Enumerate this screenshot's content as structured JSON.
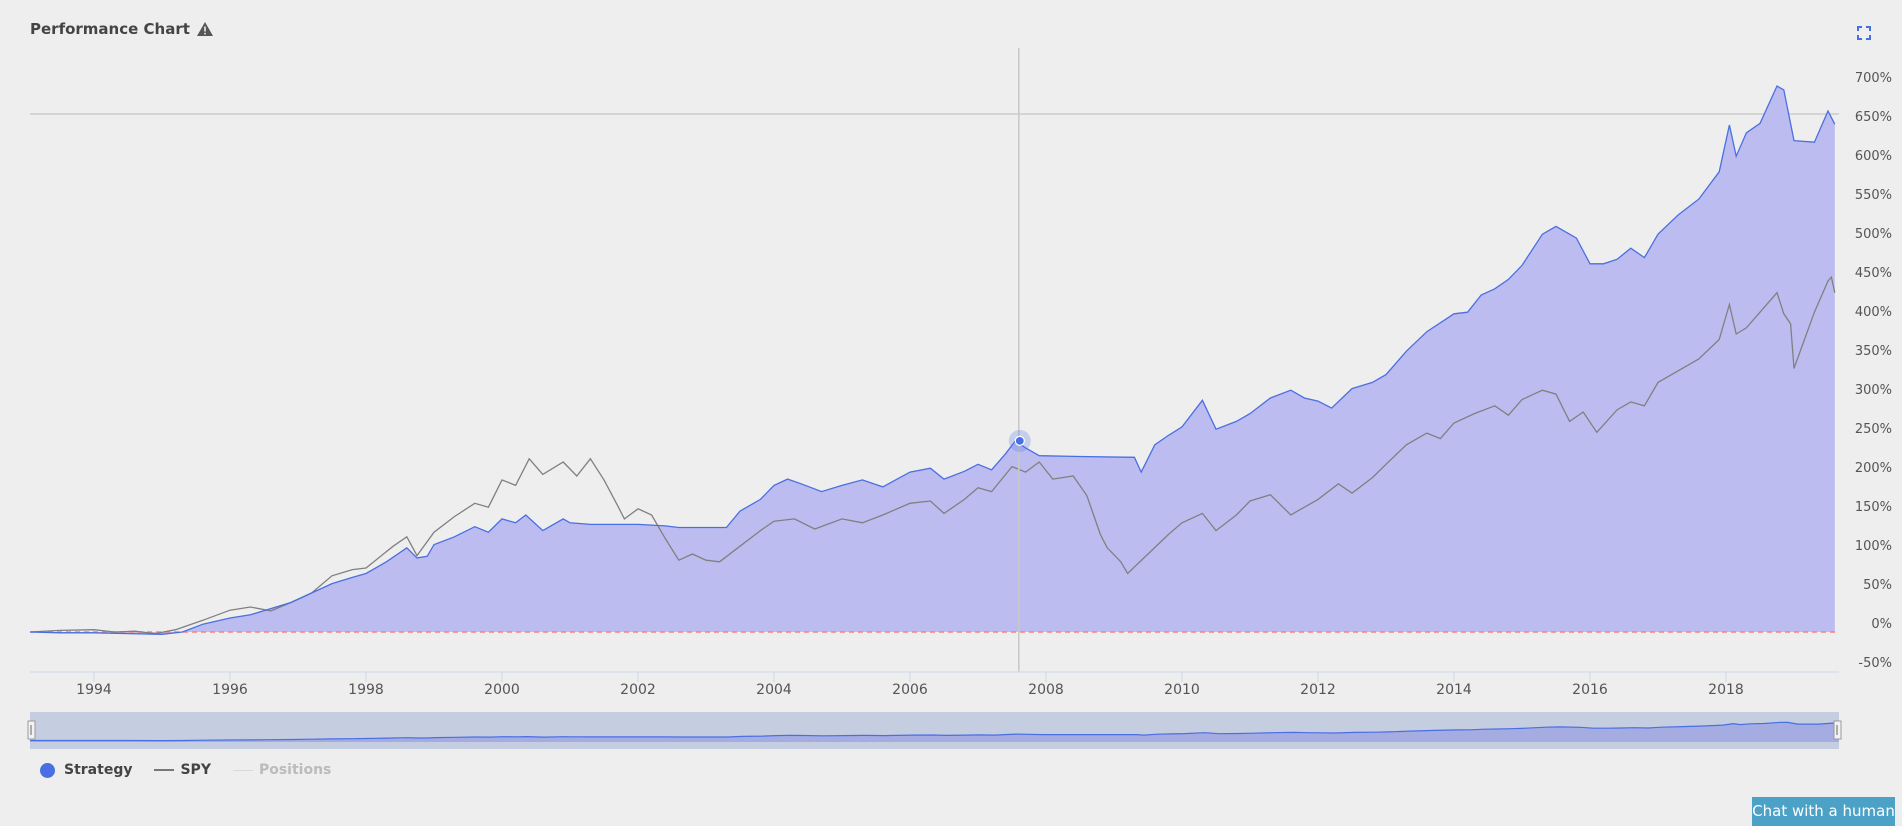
{
  "header": {
    "title": "Performance Chart",
    "warning_icon": "warning-triangle-icon",
    "fullscreen_icon": "fullscreen-icon"
  },
  "colors": {
    "strategy": "#4a6fe3",
    "strategy_fill": "#bcbcf0",
    "spy": "#808080",
    "zero_line": "#ff7f7f",
    "positions": "#cccccc",
    "chat_bg": "#4ba2c6"
  },
  "legend": [
    {
      "label": "Strategy",
      "color": "#4a6fe3",
      "symbol": "dot"
    },
    {
      "label": "SPY",
      "color": "#777777",
      "symbol": "line"
    },
    {
      "label": "Positions",
      "color": "#cccccc",
      "symbol": "line",
      "muted": true
    }
  ],
  "chat_button": {
    "label": "Chat with a human"
  },
  "chart_data": {
    "type": "area",
    "title": "Performance Chart",
    "xlabel": "",
    "ylabel": "",
    "x_ticks": [
      "1994",
      "1996",
      "1998",
      "2000",
      "2002",
      "2004",
      "2006",
      "2008",
      "2010",
      "2012",
      "2014",
      "2016",
      "2018"
    ],
    "y_ticks": [
      "700%",
      "650%",
      "600%",
      "550%",
      "500%",
      "450%",
      "400%",
      "350%",
      "300%",
      "250%",
      "200%",
      "150%",
      "100%",
      "50%",
      "0%",
      "-50%"
    ],
    "ylim": [
      -50,
      710
    ],
    "xlim": [
      1993.06,
      2019.6
    ],
    "grid": false,
    "legend_position": "bottom-left",
    "crosshair": {
      "x": 2007.6,
      "strategy_value": 245,
      "marker_y_value": 245
    },
    "series": [
      {
        "name": "Strategy",
        "type": "area",
        "points": [
          [
            1993.06,
            0
          ],
          [
            1993.5,
            -1
          ],
          [
            1994.0,
            -1
          ],
          [
            1994.5,
            -2
          ],
          [
            1995.0,
            -3
          ],
          [
            1995.3,
            0
          ],
          [
            1995.6,
            10
          ],
          [
            1996.0,
            18
          ],
          [
            1996.3,
            22
          ],
          [
            1996.6,
            30
          ],
          [
            1996.9,
            38
          ],
          [
            1997.2,
            50
          ],
          [
            1997.5,
            62
          ],
          [
            1997.8,
            70
          ],
          [
            1998.0,
            75
          ],
          [
            1998.3,
            90
          ],
          [
            1998.6,
            108
          ],
          [
            1998.75,
            95
          ],
          [
            1998.9,
            97
          ],
          [
            1999.0,
            112
          ],
          [
            1999.3,
            122
          ],
          [
            1999.6,
            135
          ],
          [
            1999.8,
            128
          ],
          [
            2000.0,
            145
          ],
          [
            2000.2,
            140
          ],
          [
            2000.35,
            150
          ],
          [
            2000.6,
            130
          ],
          [
            2000.9,
            145
          ],
          [
            2001.0,
            140
          ],
          [
            2001.3,
            138
          ],
          [
            2002.0,
            138
          ],
          [
            2002.4,
            136
          ],
          [
            2002.6,
            134
          ],
          [
            2003.3,
            134
          ],
          [
            2003.5,
            155
          ],
          [
            2003.8,
            170
          ],
          [
            2004.0,
            188
          ],
          [
            2004.2,
            196
          ],
          [
            2004.4,
            190
          ],
          [
            2004.7,
            180
          ],
          [
            2005.0,
            188
          ],
          [
            2005.3,
            195
          ],
          [
            2005.6,
            186
          ],
          [
            2006.0,
            205
          ],
          [
            2006.3,
            210
          ],
          [
            2006.5,
            196
          ],
          [
            2006.8,
            206
          ],
          [
            2007.0,
            215
          ],
          [
            2007.2,
            208
          ],
          [
            2007.4,
            228
          ],
          [
            2007.55,
            245
          ],
          [
            2007.7,
            236
          ],
          [
            2007.9,
            226
          ],
          [
            2008.5,
            225
          ],
          [
            2009.3,
            224
          ],
          [
            2009.4,
            205
          ],
          [
            2009.6,
            240
          ],
          [
            2009.8,
            252
          ],
          [
            2010.0,
            263
          ],
          [
            2010.3,
            297
          ],
          [
            2010.5,
            260
          ],
          [
            2010.8,
            270
          ],
          [
            2011.0,
            280
          ],
          [
            2011.3,
            300
          ],
          [
            2011.6,
            310
          ],
          [
            2011.8,
            300
          ],
          [
            2012.0,
            296
          ],
          [
            2012.2,
            287
          ],
          [
            2012.5,
            312
          ],
          [
            2012.8,
            320
          ],
          [
            2013.0,
            330
          ],
          [
            2013.3,
            360
          ],
          [
            2013.6,
            385
          ],
          [
            2014.0,
            408
          ],
          [
            2014.2,
            410
          ],
          [
            2014.4,
            432
          ],
          [
            2014.6,
            440
          ],
          [
            2014.8,
            452
          ],
          [
            2015.0,
            470
          ],
          [
            2015.3,
            510
          ],
          [
            2015.5,
            520
          ],
          [
            2015.8,
            505
          ],
          [
            2016.0,
            472
          ],
          [
            2016.2,
            472
          ],
          [
            2016.4,
            478
          ],
          [
            2016.6,
            492
          ],
          [
            2016.8,
            480
          ],
          [
            2017.0,
            510
          ],
          [
            2017.3,
            535
          ],
          [
            2017.6,
            555
          ],
          [
            2017.9,
            590
          ],
          [
            2018.05,
            650
          ],
          [
            2018.15,
            610
          ],
          [
            2018.3,
            640
          ],
          [
            2018.5,
            652
          ],
          [
            2018.75,
            700
          ],
          [
            2018.85,
            695
          ],
          [
            2019.0,
            630
          ],
          [
            2019.3,
            628
          ],
          [
            2019.5,
            668
          ],
          [
            2019.6,
            651
          ]
        ]
      },
      {
        "name": "SPY",
        "type": "line",
        "points": [
          [
            1993.06,
            0
          ],
          [
            1993.5,
            2
          ],
          [
            1994.0,
            3
          ],
          [
            1994.3,
            0
          ],
          [
            1994.6,
            1
          ],
          [
            1994.9,
            -2
          ],
          [
            1995.2,
            3
          ],
          [
            1995.6,
            15
          ],
          [
            1996.0,
            28
          ],
          [
            1996.3,
            32
          ],
          [
            1996.6,
            27
          ],
          [
            1996.9,
            38
          ],
          [
            1997.2,
            50
          ],
          [
            1997.5,
            72
          ],
          [
            1997.8,
            80
          ],
          [
            1998.0,
            82
          ],
          [
            1998.4,
            110
          ],
          [
            1998.6,
            122
          ],
          [
            1998.75,
            98
          ],
          [
            1999.0,
            128
          ],
          [
            1999.3,
            148
          ],
          [
            1999.6,
            165
          ],
          [
            1999.8,
            160
          ],
          [
            2000.0,
            195
          ],
          [
            2000.2,
            188
          ],
          [
            2000.4,
            222
          ],
          [
            2000.6,
            202
          ],
          [
            2000.9,
            218
          ],
          [
            2001.1,
            200
          ],
          [
            2001.3,
            222
          ],
          [
            2001.5,
            195
          ],
          [
            2001.7,
            162
          ],
          [
            2001.8,
            145
          ],
          [
            2002.0,
            158
          ],
          [
            2002.2,
            150
          ],
          [
            2002.4,
            120
          ],
          [
            2002.6,
            92
          ],
          [
            2002.8,
            100
          ],
          [
            2003.0,
            92
          ],
          [
            2003.2,
            90
          ],
          [
            2003.5,
            110
          ],
          [
            2003.8,
            130
          ],
          [
            2004.0,
            142
          ],
          [
            2004.3,
            145
          ],
          [
            2004.6,
            132
          ],
          [
            2005.0,
            145
          ],
          [
            2005.3,
            140
          ],
          [
            2005.6,
            150
          ],
          [
            2006.0,
            165
          ],
          [
            2006.3,
            168
          ],
          [
            2006.5,
            152
          ],
          [
            2006.8,
            170
          ],
          [
            2007.0,
            185
          ],
          [
            2007.2,
            180
          ],
          [
            2007.5,
            212
          ],
          [
            2007.7,
            205
          ],
          [
            2007.9,
            218
          ],
          [
            2008.1,
            196
          ],
          [
            2008.4,
            200
          ],
          [
            2008.6,
            175
          ],
          [
            2008.8,
            125
          ],
          [
            2008.9,
            108
          ],
          [
            2009.1,
            90
          ],
          [
            2009.2,
            75
          ],
          [
            2009.5,
            100
          ],
          [
            2009.8,
            125
          ],
          [
            2010.0,
            140
          ],
          [
            2010.3,
            152
          ],
          [
            2010.5,
            130
          ],
          [
            2010.8,
            150
          ],
          [
            2011.0,
            168
          ],
          [
            2011.3,
            176
          ],
          [
            2011.6,
            150
          ],
          [
            2011.8,
            160
          ],
          [
            2012.0,
            170
          ],
          [
            2012.3,
            190
          ],
          [
            2012.5,
            178
          ],
          [
            2012.8,
            198
          ],
          [
            2013.0,
            215
          ],
          [
            2013.3,
            240
          ],
          [
            2013.6,
            255
          ],
          [
            2013.8,
            248
          ],
          [
            2014.0,
            268
          ],
          [
            2014.3,
            280
          ],
          [
            2014.6,
            290
          ],
          [
            2014.8,
            278
          ],
          [
            2015.0,
            298
          ],
          [
            2015.3,
            310
          ],
          [
            2015.5,
            305
          ],
          [
            2015.7,
            270
          ],
          [
            2015.9,
            282
          ],
          [
            2016.1,
            256
          ],
          [
            2016.4,
            285
          ],
          [
            2016.6,
            295
          ],
          [
            2016.8,
            290
          ],
          [
            2017.0,
            320
          ],
          [
            2017.3,
            335
          ],
          [
            2017.6,
            350
          ],
          [
            2017.9,
            375
          ],
          [
            2018.05,
            420
          ],
          [
            2018.15,
            382
          ],
          [
            2018.3,
            390
          ],
          [
            2018.5,
            410
          ],
          [
            2018.75,
            435
          ],
          [
            2018.85,
            408
          ],
          [
            2018.95,
            395
          ],
          [
            2019.0,
            338
          ],
          [
            2019.3,
            410
          ],
          [
            2019.5,
            450
          ],
          [
            2019.55,
            455
          ],
          [
            2019.6,
            435
          ]
        ]
      }
    ]
  }
}
